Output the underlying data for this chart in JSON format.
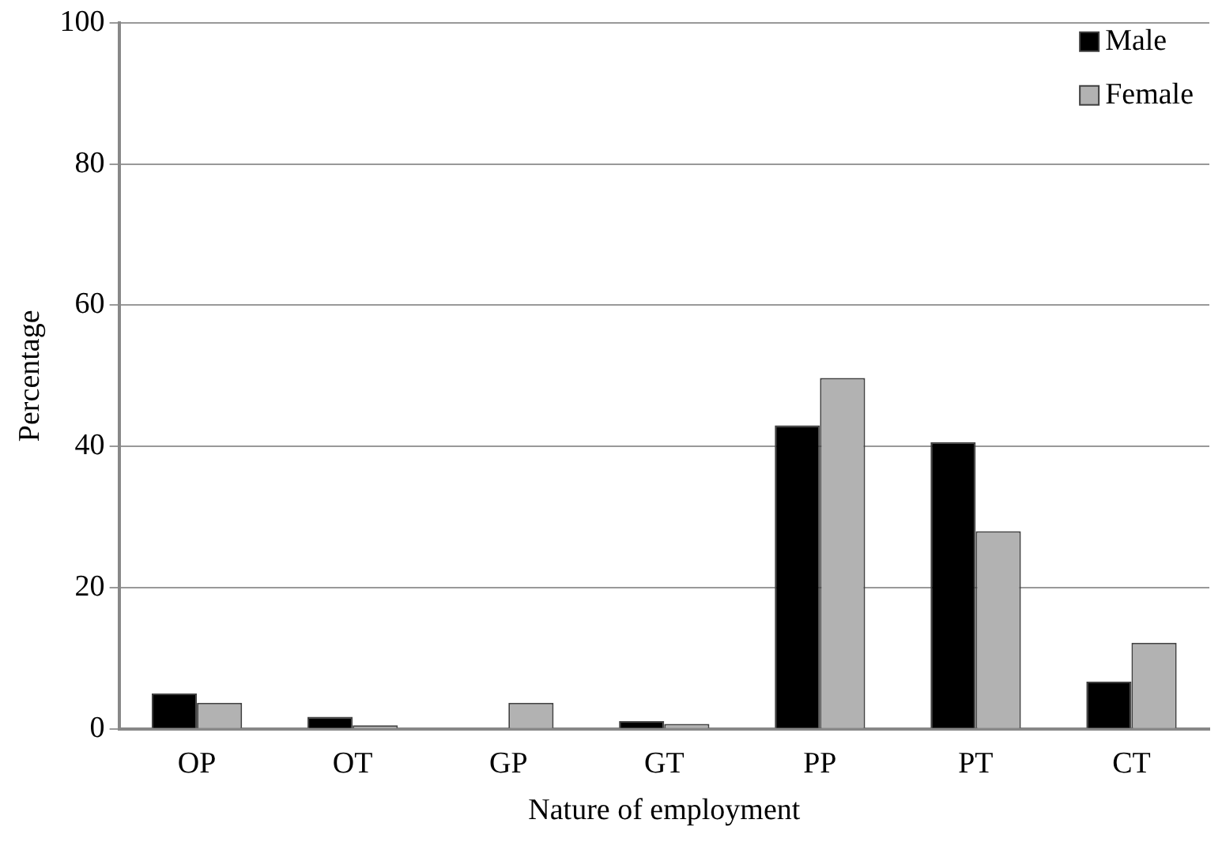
{
  "chart_data": {
    "type": "bar",
    "xlabel": "Nature of employment",
    "ylabel": "Percentage",
    "categories": [
      "OP",
      "OT",
      "GP",
      "GT",
      "PP",
      "PT",
      "CT"
    ],
    "series": [
      {
        "name": "Male",
        "color": "#000000",
        "values": [
          5.0,
          1.7,
          0,
          1.1,
          43,
          40.6,
          6.7
        ]
      },
      {
        "name": "Female",
        "color": "#b2b2b2",
        "values": [
          3.7,
          0.5,
          3.7,
          0.7,
          49.7,
          28.0,
          12.2
        ]
      }
    ],
    "ylim": [
      0,
      100
    ],
    "yticks": [
      0,
      20,
      40,
      60,
      80,
      100
    ],
    "grid": "y",
    "legend": "top right"
  }
}
